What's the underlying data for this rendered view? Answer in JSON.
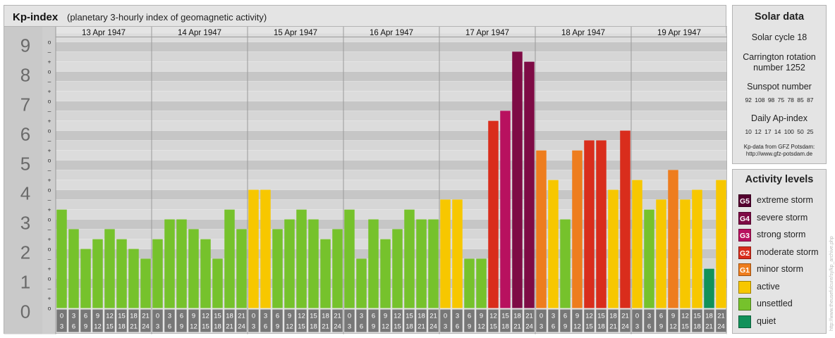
{
  "header": {
    "title": "Kp-index",
    "subtitle": "(planetary 3-hourly index of geomagnetic activity)"
  },
  "colors": {
    "quiet": "#12915a",
    "unsettled": "#76c22c",
    "active": "#f7c700",
    "minor_storm": "#ee7d1e",
    "moderate_storm": "#d92d1c",
    "strong_storm": "#b8115f",
    "severe_storm": "#7e0b45",
    "extreme_storm": "#550030"
  },
  "chart_data": {
    "type": "bar",
    "title": "Kp-index",
    "ylim": [
      0,
      9
    ],
    "y_ticks": [
      "0",
      "1",
      "2",
      "3",
      "4",
      "5",
      "6",
      "7",
      "8",
      "9"
    ],
    "minor_tick_labels": [
      "o",
      "+",
      "–"
    ],
    "days": [
      "13 Apr 1947",
      "14 Apr 1947",
      "15 Apr 1947",
      "16 Apr 1947",
      "17 Apr 1947",
      "18 Apr 1947",
      "19 Apr 1947"
    ],
    "interval_start_hours": [
      "0",
      "3",
      "6",
      "9",
      "12",
      "15",
      "18",
      "21"
    ],
    "interval_end_hours": [
      "3",
      "6",
      "9",
      "12",
      "15",
      "18",
      "21",
      "24"
    ],
    "values": [
      [
        3.33,
        2.67,
        2.0,
        2.33,
        2.67,
        2.33,
        2.0,
        1.67
      ],
      [
        2.33,
        3.0,
        3.0,
        2.67,
        2.33,
        1.67,
        3.33,
        2.67
      ],
      [
        4.0,
        4.0,
        2.67,
        3.0,
        3.33,
        3.0,
        2.33,
        2.67
      ],
      [
        3.33,
        1.67,
        3.0,
        2.33,
        2.67,
        3.33,
        3.0,
        3.0
      ],
      [
        3.67,
        3.67,
        1.67,
        1.67,
        6.33,
        6.67,
        8.67,
        8.33
      ],
      [
        5.33,
        4.33,
        3.0,
        5.33,
        5.67,
        5.67,
        4.0,
        6.0
      ],
      [
        4.33,
        3.33,
        3.67,
        4.67,
        3.67,
        4.0,
        1.33,
        4.33
      ]
    ],
    "colors_by_interval": [
      [
        "unsettled",
        "unsettled",
        "unsettled",
        "unsettled",
        "unsettled",
        "unsettled",
        "unsettled",
        "unsettled"
      ],
      [
        "unsettled",
        "unsettled",
        "unsettled",
        "unsettled",
        "unsettled",
        "unsettled",
        "unsettled",
        "unsettled"
      ],
      [
        "active",
        "active",
        "unsettled",
        "unsettled",
        "unsettled",
        "unsettled",
        "unsettled",
        "unsettled"
      ],
      [
        "unsettled",
        "unsettled",
        "unsettled",
        "unsettled",
        "unsettled",
        "unsettled",
        "unsettled",
        "unsettled"
      ],
      [
        "active",
        "active",
        "unsettled",
        "unsettled",
        "moderate_storm",
        "strong_storm",
        "severe_storm",
        "severe_storm"
      ],
      [
        "minor_storm",
        "active",
        "unsettled",
        "minor_storm",
        "moderate_storm",
        "moderate_storm",
        "active",
        "moderate_storm"
      ],
      [
        "active",
        "unsettled",
        "active",
        "minor_storm",
        "active",
        "active",
        "quiet",
        "active"
      ]
    ]
  },
  "solar": {
    "title": "Solar data",
    "cycle": "Solar cycle 18",
    "carrington_line1": "Carrington rotation",
    "carrington_line2": "number 1252",
    "sunspot_title": "Sunspot number",
    "sunspot_values": "92 108 98 75 78 85 87",
    "ap_title": "Daily Ap-index",
    "ap_values": "10 12 17 14 100 50 25",
    "credit_line1": "Kp-data from GFZ Potsdam:",
    "credit_line2": "http://www.gfz-potsdam.de"
  },
  "activity": {
    "title": "Activity levels",
    "levels": [
      {
        "code": "G5",
        "label": "extreme storm",
        "color": "#550030"
      },
      {
        "code": "G4",
        "label": "severe storm",
        "color": "#7e0b45"
      },
      {
        "code": "G3",
        "label": "strong storm",
        "color": "#b8115f"
      },
      {
        "code": "G2",
        "label": "moderate storm",
        "color": "#d92d1c"
      },
      {
        "code": "G1",
        "label": "minor storm",
        "color": "#ee7d1e"
      },
      {
        "code": "",
        "label": "active",
        "color": "#f7c700"
      },
      {
        "code": "",
        "label": "unsettled",
        "color": "#76c22c"
      },
      {
        "code": "",
        "label": "quiet",
        "color": "#12915a"
      }
    ]
  },
  "watermark": "http://www.theusefulcure/sy/kp_archive.php"
}
